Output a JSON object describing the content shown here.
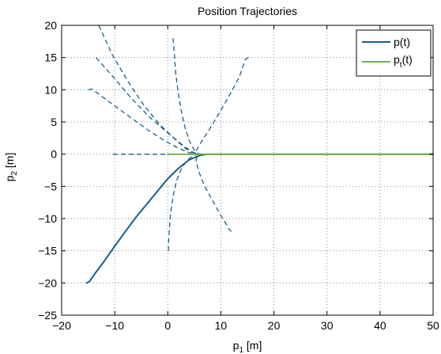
{
  "colors": {
    "trajectory": "#1a5e8a",
    "target": "#73b34a",
    "grid": "#8a8a8a",
    "axis": "#000000",
    "background": "#ffffff"
  },
  "chart_data": {
    "type": "line",
    "title": "Position Trajectories",
    "xlabel": {
      "base": "p",
      "sub": "1",
      "unit": " [m]"
    },
    "ylabel": {
      "base": "p",
      "sub": "2",
      "unit": " [m]"
    },
    "xlim": [
      -20,
      50
    ],
    "ylim": [
      -25,
      20
    ],
    "xticks": [
      -20,
      -10,
      0,
      10,
      20,
      30,
      40,
      50
    ],
    "yticks": [
      -25,
      -20,
      -15,
      -10,
      -5,
      0,
      5,
      10,
      15,
      20
    ],
    "grid": true,
    "legend": {
      "position": "top-right",
      "entries": [
        {
          "base": "p(t)",
          "sub": "",
          "tail": ""
        },
        {
          "base": "p",
          "sub": "t",
          "tail": "(t)"
        }
      ]
    },
    "series": [
      {
        "name": "p(t)",
        "style": "solid",
        "colorKey": "trajectory",
        "x": [
          -15.3,
          -14.8,
          -13.5,
          -11.8,
          -10,
          -8,
          -6,
          -4,
          -2,
          0,
          2,
          4,
          6,
          7.5,
          10,
          20,
          30,
          40,
          50
        ],
        "y": [
          -20,
          -19.8,
          -18.3,
          -16.4,
          -14.3,
          -12,
          -9.8,
          -7.8,
          -5.8,
          -3.8,
          -2.2,
          -0.9,
          -0.2,
          0,
          0,
          0,
          0,
          0,
          0
        ]
      },
      {
        "name": "p_t(t)",
        "style": "solid",
        "colorKey": "target",
        "x": [
          0,
          10,
          20,
          30,
          40,
          50
        ],
        "y": [
          0,
          0,
          0,
          0,
          0,
          0
        ]
      }
    ],
    "dashed_trajectories": [
      {
        "x": [
          -13,
          -10.5,
          -7.5,
          -4.5,
          -1.5,
          1.5,
          3.5,
          4.8,
          5.5,
          6.2
        ],
        "y": [
          20,
          15.5,
          11.3,
          7.6,
          4.6,
          2.2,
          0.8,
          0.2,
          0,
          0
        ]
      },
      {
        "x": [
          -13.5,
          -10.5,
          -7,
          -3.5,
          0,
          2.8,
          4.5,
          5.5,
          6.5
        ],
        "y": [
          15,
          12.2,
          8.8,
          5.8,
          3.3,
          1.4,
          0.4,
          0.05,
          0
        ]
      },
      {
        "x": [
          -15,
          -14.3,
          -12.8,
          -10,
          -7,
          -4,
          -1,
          1.8,
          3.8,
          5.2,
          6.3
        ],
        "y": [
          10,
          10.1,
          9.2,
          7.5,
          5.7,
          3.9,
          2.3,
          1,
          0.3,
          0,
          0
        ]
      },
      {
        "x": [
          1,
          1.2,
          1.5,
          2,
          2.6,
          3.3,
          4.1,
          4.9,
          5.6,
          6.4
        ],
        "y": [
          18,
          16,
          12.5,
          9.3,
          6.5,
          4,
          2,
          0.8,
          0.1,
          0
        ]
      },
      {
        "x": [
          15.2,
          14.6,
          13.5,
          11.4,
          9.3,
          7.5,
          6.1,
          5.3,
          5.8,
          6.8
        ],
        "y": [
          15,
          14.7,
          12,
          8.8,
          5.8,
          3.4,
          1.6,
          0.4,
          0,
          0
        ]
      },
      {
        "x": [
          -10.3,
          -8,
          -5,
          -2,
          1,
          3,
          5,
          6.5
        ],
        "y": [
          0,
          0,
          0,
          0,
          0,
          0,
          0,
          0
        ]
      },
      {
        "x": [
          0.1,
          0.2,
          0.5,
          1,
          1.7,
          2.6,
          3.7,
          4.9,
          5.8,
          6.5
        ],
        "y": [
          -15,
          -13,
          -9.5,
          -6.5,
          -4,
          -2.2,
          -0.9,
          -0.2,
          0,
          0
        ]
      },
      {
        "x": [
          12,
          11.6,
          10,
          8.3,
          6.8,
          5.8,
          5.3,
          5.8,
          6.6
        ],
        "y": [
          -12,
          -11.7,
          -9.5,
          -7,
          -4.7,
          -2.6,
          -0.9,
          0,
          0
        ]
      }
    ]
  }
}
